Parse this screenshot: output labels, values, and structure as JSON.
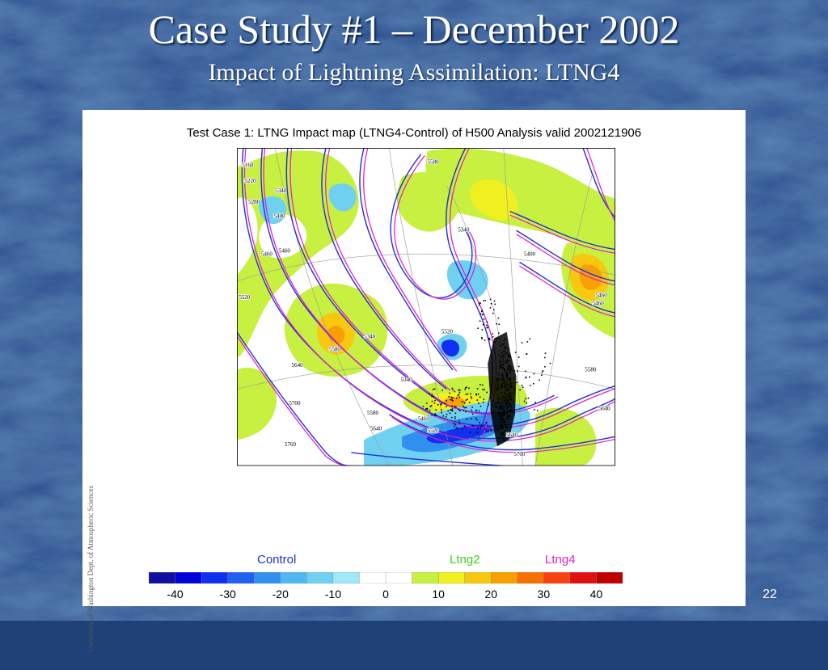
{
  "slide": {
    "title": "Case Study #1 – December 2002",
    "subtitle": "Impact of Lightning Assimilation: LTNG4",
    "page_number": "22",
    "background_color": "#1f4178"
  },
  "figure": {
    "title": "Test Case 1: LTNG Impact map (LTNG4-Control) of H500 Analysis valid 2002121906",
    "credit": "University of Washington Dept. of Atmospheric Sciences",
    "legend": [
      {
        "label": "Control",
        "color": "#2030d8"
      },
      {
        "label": "Ltng2",
        "color": "#40d020"
      },
      {
        "label": "Ltng4",
        "color": "#e020c8"
      }
    ],
    "contour_labels": [
      "5160",
      "5220",
      "5280",
      "5340",
      "5400",
      "5460",
      "5520",
      "5580",
      "5640",
      "5700",
      "5760"
    ],
    "colorbar": {
      "colors": [
        "#1010a0",
        "#0000d8",
        "#1030f0",
        "#2060f0",
        "#3090f0",
        "#50b8f0",
        "#70d0f0",
        "#a0e8f8",
        "#ffffff",
        "#ffffff",
        "#c8f040",
        "#f0f020",
        "#f8c810",
        "#f8a000",
        "#f87000",
        "#f84010",
        "#e01010",
        "#c00000"
      ],
      "tick_labels": [
        "-40",
        "-30",
        "-20",
        "-10",
        "0",
        "10",
        "20",
        "30",
        "40"
      ]
    }
  }
}
